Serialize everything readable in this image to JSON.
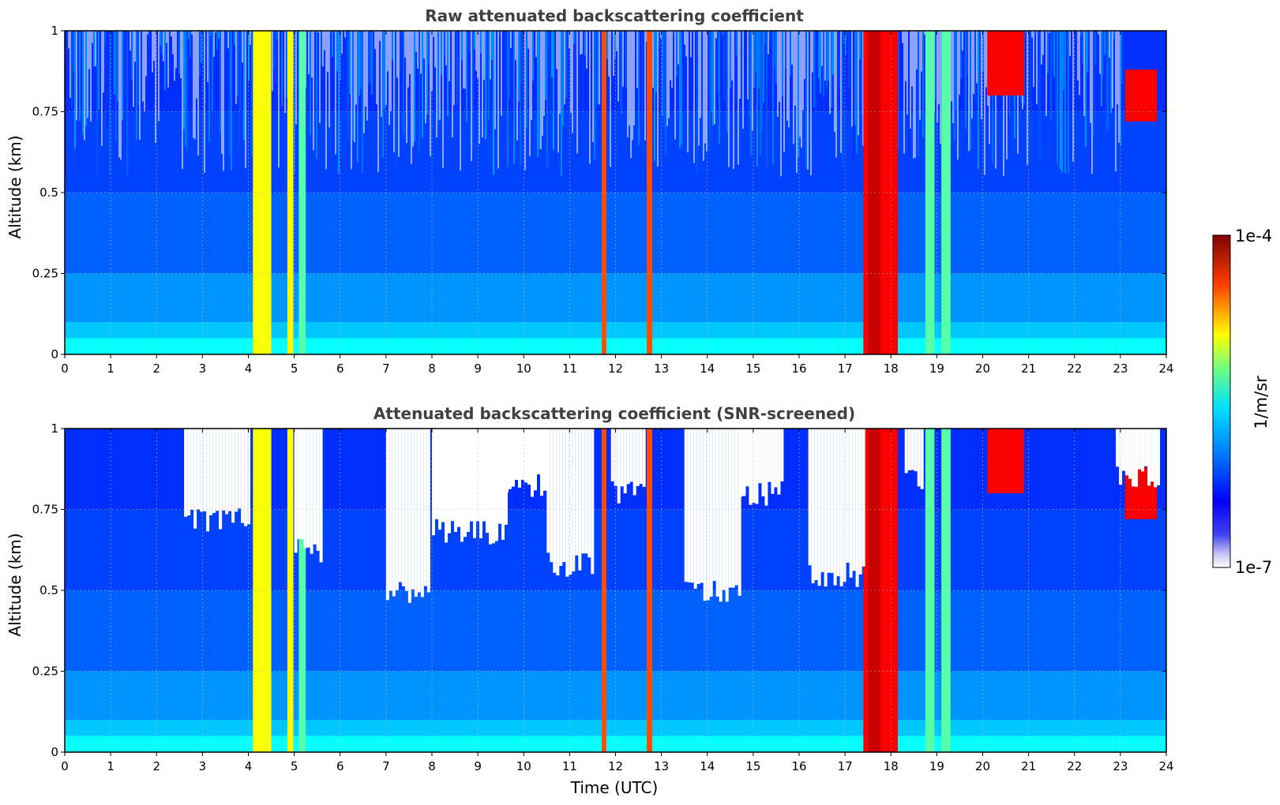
{
  "chart_data": [
    {
      "type": "heatmap",
      "title": "Raw attenuated backscattering coefficient",
      "xlabel": "",
      "ylabel": "Altitude (km)",
      "xlim": [
        0,
        24
      ],
      "ylim": [
        0,
        1
      ],
      "x_ticks": [
        "0",
        "1",
        "2",
        "3",
        "4",
        "5",
        "6",
        "7",
        "8",
        "9",
        "10",
        "11",
        "12",
        "13",
        "14",
        "15",
        "16",
        "17",
        "18",
        "19",
        "20",
        "21",
        "22",
        "23",
        "24"
      ],
      "y_ticks": [
        "0",
        "0.25",
        "0.5",
        "0.75",
        "1"
      ],
      "grid": true,
      "screened": false,
      "features": [
        {
          "kind": "aerosol_layer",
          "x_range": [
            4.1,
            4.5
          ],
          "level": "medium-high"
        },
        {
          "kind": "aerosol_layer",
          "x_range": [
            4.85,
            4.98
          ],
          "level": "medium-high"
        },
        {
          "kind": "aerosol_layer",
          "x_range": [
            5.1,
            5.25
          ],
          "level": "medium"
        },
        {
          "kind": "aerosol_layer",
          "x_range": [
            11.7,
            11.8
          ],
          "level": "high"
        },
        {
          "kind": "aerosol_layer",
          "x_range": [
            12.68,
            12.8
          ],
          "level": "high"
        },
        {
          "kind": "cloud",
          "x_range": [
            17.4,
            18.15
          ],
          "level": "very-high"
        },
        {
          "kind": "aerosol_layer",
          "x_range": [
            18.75,
            18.95
          ],
          "level": "medium"
        },
        {
          "kind": "aerosol_layer",
          "x_range": [
            19.1,
            19.3
          ],
          "level": "medium"
        },
        {
          "kind": "cloud",
          "x_range": [
            20.1,
            20.9
          ],
          "y_range": [
            0.8,
            1.0
          ],
          "level": "very-high"
        },
        {
          "kind": "cloud",
          "x_range": [
            23.1,
            23.8
          ],
          "y_range": [
            0.72,
            0.88
          ],
          "level": "very-high"
        }
      ]
    },
    {
      "type": "heatmap",
      "title": "Attenuated backscattering coefficient (SNR-screened)",
      "xlabel": "Time (UTC)",
      "ylabel": "Altitude (km)",
      "xlim": [
        0,
        24
      ],
      "ylim": [
        0,
        1
      ],
      "x_ticks": [
        "0",
        "1",
        "2",
        "3",
        "4",
        "5",
        "6",
        "7",
        "8",
        "9",
        "10",
        "11",
        "12",
        "13",
        "14",
        "15",
        "16",
        "17",
        "18",
        "19",
        "20",
        "21",
        "22",
        "23",
        "24"
      ],
      "y_ticks": [
        "0",
        "0.25",
        "0.5",
        "0.75",
        "1"
      ],
      "grid": true,
      "screened": true,
      "screened_regions": [
        {
          "x_range": [
            2.6,
            4.0
          ],
          "lower_y": 0.72
        },
        {
          "x_range": [
            5.0,
            5.6
          ],
          "lower_y": 0.62
        },
        {
          "x_range": [
            7.0,
            7.9
          ],
          "lower_y": 0.5
        },
        {
          "x_range": [
            8.0,
            9.6
          ],
          "lower_y": 0.68
        },
        {
          "x_range": [
            9.6,
            10.5
          ],
          "lower_y": 0.82
        },
        {
          "x_range": [
            10.5,
            11.5
          ],
          "lower_y": 0.58
        },
        {
          "x_range": [
            11.9,
            12.6
          ],
          "lower_y": 0.8
        },
        {
          "x_range": [
            13.5,
            14.7
          ],
          "lower_y": 0.5
        },
        {
          "x_range": [
            14.7,
            15.6
          ],
          "lower_y": 0.8
        },
        {
          "x_range": [
            16.2,
            17.4
          ],
          "lower_y": 0.55
        },
        {
          "x_range": [
            18.3,
            18.7
          ],
          "lower_y": 0.85
        },
        {
          "x_range": [
            22.9,
            23.8
          ],
          "lower_y": 0.85
        }
      ]
    }
  ],
  "colorbar": {
    "label": "1/m/sr",
    "max_label": "1e-4",
    "min_label": "1e-7",
    "scale": "log",
    "range": [
      1e-07,
      0.0001
    ],
    "colormap": "jet"
  }
}
